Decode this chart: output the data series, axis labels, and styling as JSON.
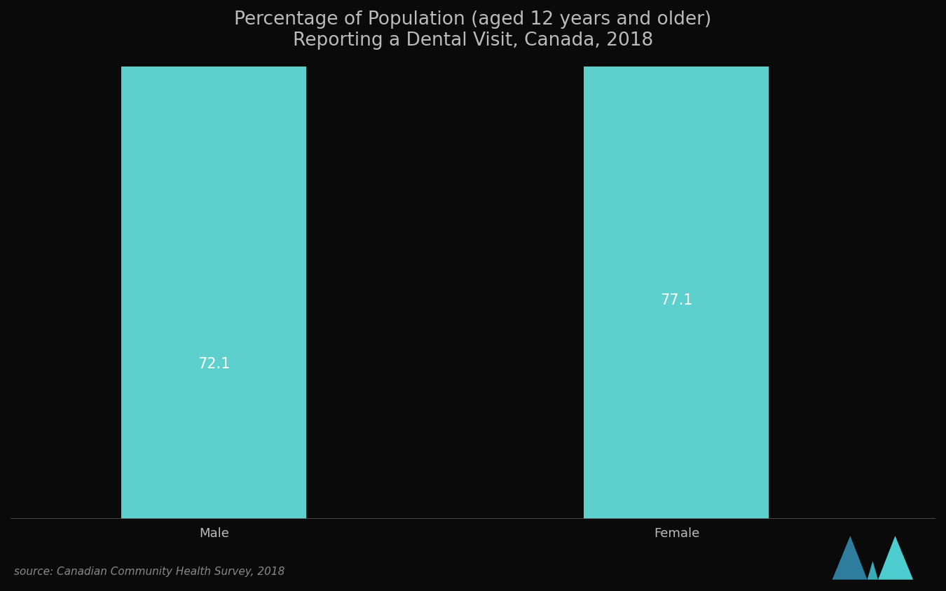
{
  "title_line1": "Percentage of Population (aged 12 years and older)",
  "title_line2": "Reporting a Dental Visit, Canada, 2018",
  "categories": [
    "Male",
    "Female"
  ],
  "values": [
    72.1,
    77.1
  ],
  "bar_color": "#5DCFCC",
  "background_color": "#0a0a0a",
  "text_color": "#bbbbbb",
  "value_label_color": "#ffffff",
  "source_text": "source: Canadian Community Health Survey, 2018",
  "ylim": [
    60,
    90
  ],
  "title_fontsize": 19,
  "label_fontsize": 13,
  "value_fontsize": 15,
  "source_fontsize": 11,
  "bar_positions": [
    0.22,
    0.72
  ],
  "bar_width": 0.2
}
